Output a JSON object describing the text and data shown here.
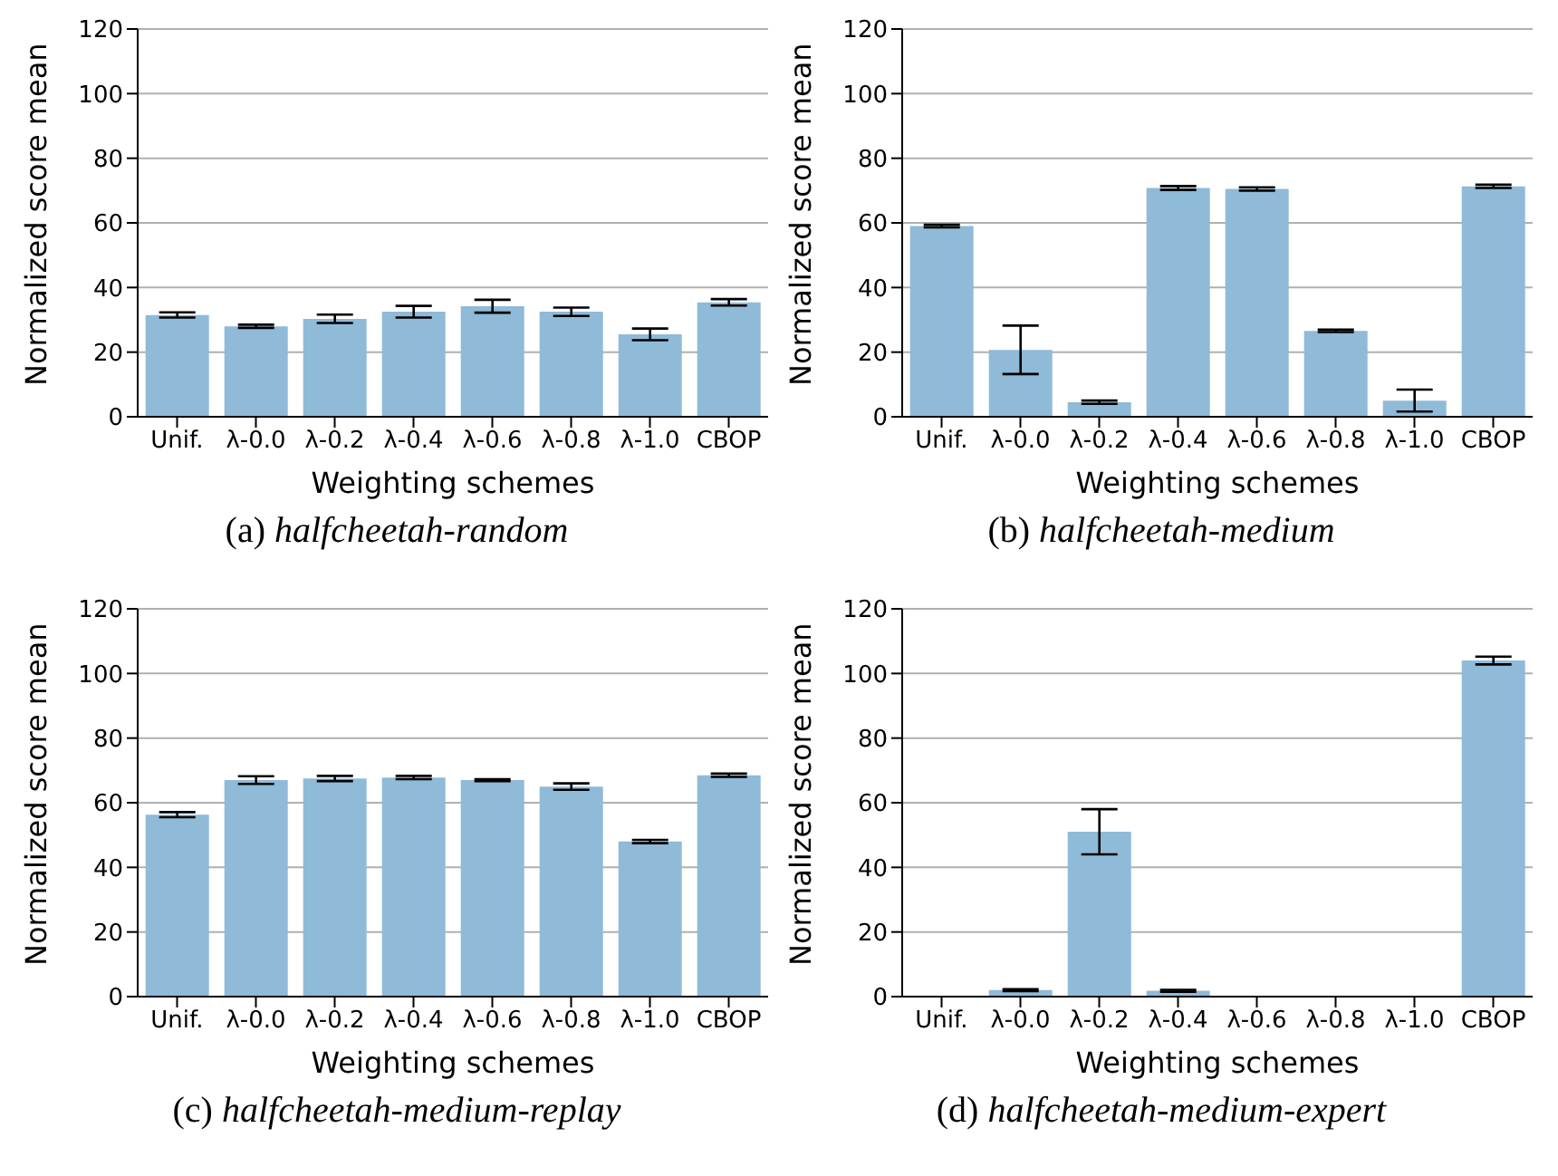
{
  "chart_data": [
    {
      "type": "bar",
      "xlabel": "Weighting schemes",
      "ylabel": "Normalized score mean",
      "categories": [
        "Unif.",
        "λ-0.0",
        "λ-0.2",
        "λ-0.4",
        "λ-0.6",
        "λ-0.8",
        "λ-1.0",
        "CBOP"
      ],
      "values": [
        31.5,
        28,
        30.3,
        32.5,
        34.2,
        32.5,
        25.5,
        35.4
      ],
      "errors": [
        0.8,
        0.5,
        1.3,
        1.8,
        2,
        1.3,
        1.8,
        1
      ],
      "color": "#8fbad8",
      "ylim": [
        0,
        120
      ],
      "yticks": [
        0,
        20,
        40,
        60,
        80,
        100,
        120
      ],
      "grid": "y",
      "legend": false,
      "annotations": [
        "(a) halfcheetah-random"
      ]
    },
    {
      "type": "bar",
      "xlabel": "Weighting schemes",
      "ylabel": "Normalized score mean",
      "categories": [
        "Unif.",
        "λ-0.0",
        "λ-0.2",
        "λ-0.4",
        "λ-0.6",
        "λ-0.8",
        "λ-1.0",
        "CBOP"
      ],
      "values": [
        59,
        20.7,
        4.5,
        70.8,
        70.5,
        26.6,
        5,
        71.3
      ],
      "errors": [
        0.4,
        7.5,
        0.5,
        0.6,
        0.5,
        0.4,
        3.4,
        0.5
      ],
      "color": "#8fbad8",
      "ylim": [
        0,
        120
      ],
      "yticks": [
        0,
        20,
        40,
        60,
        80,
        100,
        120
      ],
      "grid": "y",
      "legend": false,
      "annotations": [
        "(b) halfcheetah-medium"
      ]
    },
    {
      "type": "bar",
      "xlabel": "Weighting schemes",
      "ylabel": "Normalized score mean",
      "categories": [
        "Unif.",
        "λ-0.0",
        "λ-0.2",
        "λ-0.4",
        "λ-0.6",
        "λ-0.8",
        "λ-1.0",
        "CBOP"
      ],
      "values": [
        56.3,
        67,
        67.5,
        67.8,
        67,
        65,
        48,
        68.5
      ],
      "errors": [
        0.8,
        1.2,
        0.8,
        0.5,
        0.3,
        1,
        0.5,
        0.5
      ],
      "color": "#8fbad8",
      "ylim": [
        0,
        120
      ],
      "yticks": [
        0,
        20,
        40,
        60,
        80,
        100,
        120
      ],
      "grid": "y",
      "legend": false,
      "annotations": [
        "(c) halfcheetah-medium-replay"
      ]
    },
    {
      "type": "bar",
      "xlabel": "Weighting schemes",
      "ylabel": "Normalized score mean",
      "categories": [
        "Unif.",
        "λ-0.0",
        "λ-0.2",
        "λ-0.4",
        "λ-0.6",
        "λ-0.8",
        "λ-1.0",
        "CBOP"
      ],
      "values": [
        0,
        2,
        51,
        1.8,
        0,
        0,
        0,
        104
      ],
      "errors": [
        null,
        0.3,
        7,
        0.3,
        null,
        null,
        null,
        1.2
      ],
      "color": "#8fbad8",
      "ylim": [
        0,
        120
      ],
      "yticks": [
        0,
        20,
        40,
        60,
        80,
        100,
        120
      ],
      "grid": "y",
      "legend": false,
      "annotations": [
        "(d) halfcheetah-medium-expert"
      ]
    }
  ]
}
